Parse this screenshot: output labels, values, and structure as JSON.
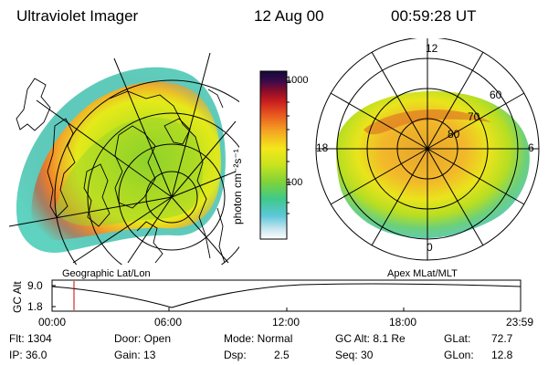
{
  "header": {
    "title": "Ultraviolet Imager",
    "date": "12 Aug 00",
    "time": "00:59:28 UT"
  },
  "colorbar": {
    "label": "photon cm⁻²s⁻¹",
    "ticks": [
      "1000",
      "100"
    ]
  },
  "left_panel": {
    "caption": "Geographic Lat/Lon"
  },
  "right_panel": {
    "caption": "Apex MLat/MLT",
    "mlt_labels": {
      "top": "12",
      "bottom": "0",
      "left": "18",
      "right": "6"
    },
    "lat_labels": [
      "60",
      "70",
      "80"
    ]
  },
  "altitude_plot": {
    "ylabel": "GC Alt",
    "yticks": [
      "9.0",
      "1.8"
    ],
    "xticks": [
      "00:00",
      "06:00",
      "12:00",
      "18:00",
      "23:59"
    ],
    "marker_color": "#cc0000"
  },
  "info": {
    "flt": "Flt: 1304",
    "ip": "IP: 36.0",
    "door": "Door: Open",
    "gain": "Gain: 13",
    "mode": "Mode: Normal",
    "dsp_label": "Dsp:",
    "dsp_value": "2.5",
    "gc_alt": "GC Alt: 8.1 Re",
    "seq": "Seq: 30",
    "glat_label": "GLat:",
    "glat_value": "72.7",
    "glon_label": "GLon:",
    "glon_value": "12.8"
  }
}
